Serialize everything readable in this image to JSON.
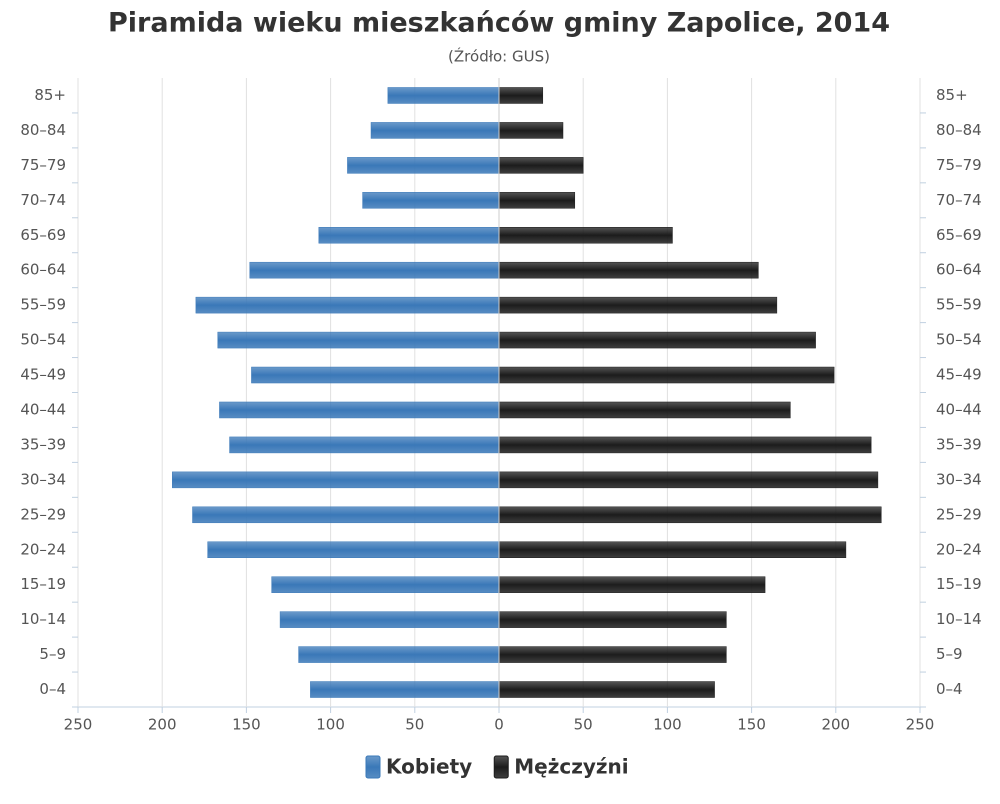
{
  "chart_data": {
    "type": "pyramid",
    "title": "Piramida wieku mieszkańców gminy Zapolice, 2014",
    "subtitle": "(Źródło: GUS)",
    "categories": [
      "0–4",
      "5–9",
      "10–14",
      "15–19",
      "20–24",
      "25–29",
      "30–34",
      "35–39",
      "40–44",
      "45–49",
      "50–54",
      "55–59",
      "60–64",
      "65–69",
      "70–74",
      "75–79",
      "80–84",
      "85+"
    ],
    "series": [
      {
        "name": "Kobiety",
        "color": "#3a78b8",
        "values": [
          -112,
          -119,
          -130,
          -135,
          -173,
          -182,
          -194,
          -160,
          -166,
          -147,
          -167,
          -180,
          -148,
          -107,
          -81,
          -90,
          -76,
          -66
        ]
      },
      {
        "name": "Mężczyźni",
        "color": "#1c1c1c",
        "values": [
          128,
          135,
          135,
          158,
          206,
          227,
          225,
          221,
          173,
          199,
          188,
          165,
          154,
          103,
          45,
          50,
          38,
          26
        ]
      }
    ],
    "xlim": [
      -250,
      250
    ],
    "xticks": [
      {
        "value": -250,
        "label": "250"
      },
      {
        "value": -200,
        "label": "200"
      },
      {
        "value": -150,
        "label": "150"
      },
      {
        "value": -100,
        "label": "100"
      },
      {
        "value": -50,
        "label": "50"
      },
      0,
      50,
      100,
      150,
      200,
      250
    ],
    "grid": true,
    "legend": "bottom"
  }
}
